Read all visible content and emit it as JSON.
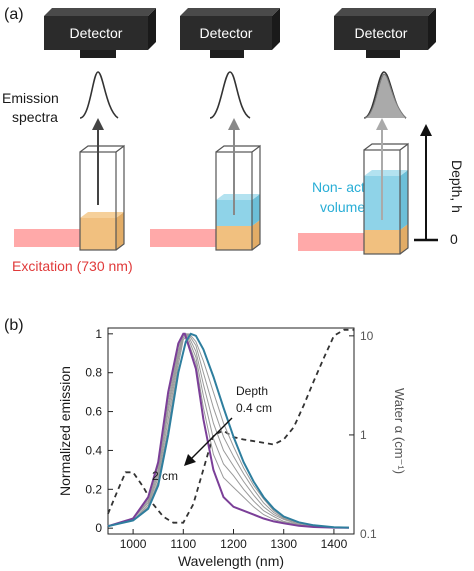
{
  "panel_a": {
    "label": "(a)",
    "detector_label": "Detector",
    "emission_label_line1": "Emission",
    "emission_label_line2": "spectra",
    "non_active_line1": "Non- active",
    "non_active_line2": "volume",
    "excitation_label": "Excitation (730 nm)",
    "depth_label": "Depth, h",
    "zero_label": "0",
    "colors": {
      "detector": "#2b2b2b",
      "liquid": "#f1c07f",
      "non_active": "#8fd3e8",
      "excitation": "#ff8c8c",
      "non_active_text": "#29aed6",
      "excitation_text": "#e03a3a"
    }
  },
  "panel_b": {
    "label": "(b)",
    "annotation_depth": "Depth",
    "annotation_top": "0.4 cm",
    "annotation_bottom": "2 cm",
    "colors": {
      "top_curve": "#2e7e9e",
      "bottom_curve": "#7b3f98",
      "middle_curves": "#9a9a9a",
      "water": "#333333"
    }
  },
  "chart_data": {
    "type": "line",
    "title": "",
    "xlabel": "Wavelength (nm)",
    "ylabel": "Normalized emission",
    "y2label": "Water α (cm⁻¹)",
    "xlim": [
      950,
      1440
    ],
    "ylim": [
      -0.03,
      1.03
    ],
    "y2lim": [
      0.1,
      12
    ],
    "y2scale": "log",
    "xticks": [
      1000,
      1100,
      1200,
      1300,
      1400
    ],
    "yticks": [
      0,
      0.2,
      0.4,
      0.6,
      0.8,
      1
    ],
    "y2ticks": [
      0.1,
      1,
      10
    ],
    "y2ticklabels": [
      "0.1",
      "1",
      "10"
    ],
    "grid": false,
    "series": [
      {
        "role": "depth-0.4",
        "x": [
          950,
          1000,
          1030,
          1050,
          1070,
          1090,
          1105,
          1115,
          1125,
          1140,
          1160,
          1180,
          1200,
          1220,
          1240,
          1260,
          1280,
          1300,
          1330,
          1360,
          1400,
          1430
        ],
        "y": [
          0.01,
          0.04,
          0.1,
          0.22,
          0.48,
          0.8,
          0.96,
          1.0,
          0.99,
          0.92,
          0.78,
          0.62,
          0.47,
          0.34,
          0.24,
          0.16,
          0.1,
          0.06,
          0.03,
          0.015,
          0.005,
          0.003
        ]
      },
      {
        "role": "middle-1",
        "x": [
          950,
          1000,
          1030,
          1050,
          1070,
          1090,
          1100,
          1112,
          1125,
          1140,
          1160,
          1180,
          1200,
          1220,
          1240,
          1260,
          1280,
          1300,
          1330,
          1360,
          1400,
          1430
        ],
        "y": [
          0.01,
          0.04,
          0.11,
          0.24,
          0.52,
          0.84,
          0.97,
          1.0,
          0.96,
          0.86,
          0.7,
          0.54,
          0.42,
          0.31,
          0.22,
          0.15,
          0.09,
          0.055,
          0.03,
          0.015,
          0.005,
          0.003
        ]
      },
      {
        "role": "middle-2",
        "x": [
          950,
          1000,
          1030,
          1050,
          1070,
          1090,
          1100,
          1110,
          1125,
          1140,
          1160,
          1180,
          1200,
          1220,
          1240,
          1260,
          1280,
          1300,
          1330,
          1360,
          1400,
          1430
        ],
        "y": [
          0.01,
          0.04,
          0.12,
          0.26,
          0.56,
          0.87,
          0.98,
          1.0,
          0.94,
          0.8,
          0.62,
          0.47,
          0.37,
          0.28,
          0.2,
          0.13,
          0.08,
          0.05,
          0.025,
          0.012,
          0.005,
          0.003
        ]
      },
      {
        "role": "middle-3",
        "x": [
          950,
          1000,
          1030,
          1050,
          1070,
          1090,
          1100,
          1108,
          1125,
          1140,
          1160,
          1180,
          1200,
          1220,
          1240,
          1260,
          1280,
          1300,
          1330,
          1360,
          1400,
          1430
        ],
        "y": [
          0.01,
          0.05,
          0.13,
          0.28,
          0.6,
          0.89,
          0.99,
          1.0,
          0.91,
          0.74,
          0.54,
          0.4,
          0.32,
          0.24,
          0.17,
          0.11,
          0.07,
          0.045,
          0.02,
          0.01,
          0.004,
          0.002
        ]
      },
      {
        "role": "middle-4",
        "x": [
          950,
          1000,
          1030,
          1050,
          1070,
          1090,
          1100,
          1106,
          1125,
          1140,
          1160,
          1180,
          1200,
          1220,
          1240,
          1260,
          1280,
          1300,
          1330,
          1360,
          1400,
          1430
        ],
        "y": [
          0.01,
          0.05,
          0.14,
          0.3,
          0.63,
          0.91,
          0.99,
          1.0,
          0.88,
          0.68,
          0.46,
          0.33,
          0.27,
          0.2,
          0.14,
          0.09,
          0.06,
          0.035,
          0.018,
          0.009,
          0.004,
          0.002
        ]
      },
      {
        "role": "middle-5",
        "x": [
          950,
          1000,
          1030,
          1050,
          1070,
          1090,
          1100,
          1104,
          1125,
          1140,
          1160,
          1180,
          1200,
          1220,
          1240,
          1260,
          1280,
          1300,
          1330,
          1360,
          1400,
          1430
        ],
        "y": [
          0.01,
          0.05,
          0.15,
          0.32,
          0.66,
          0.93,
          0.99,
          1.0,
          0.85,
          0.62,
          0.38,
          0.26,
          0.21,
          0.16,
          0.11,
          0.07,
          0.045,
          0.03,
          0.015,
          0.008,
          0.003,
          0.002
        ]
      },
      {
        "role": "depth-2",
        "x": [
          950,
          1000,
          1030,
          1050,
          1070,
          1090,
          1100,
          1103,
          1125,
          1140,
          1160,
          1180,
          1200,
          1220,
          1240,
          1260,
          1280,
          1300,
          1330,
          1360,
          1400,
          1430
        ],
        "y": [
          0.01,
          0.05,
          0.16,
          0.34,
          0.7,
          0.95,
          1.0,
          1.0,
          0.82,
          0.56,
          0.3,
          0.16,
          0.11,
          0.09,
          0.07,
          0.05,
          0.035,
          0.025,
          0.012,
          0.006,
          0.003,
          0.002
        ]
      }
    ],
    "water_absorption": {
      "x": [
        950,
        970,
        985,
        1000,
        1020,
        1040,
        1060,
        1080,
        1100,
        1120,
        1140,
        1160,
        1180,
        1200,
        1220,
        1250,
        1280,
        1300,
        1320,
        1340,
        1360,
        1380,
        1400,
        1420,
        1440
      ],
      "y": [
        0.16,
        0.28,
        0.42,
        0.42,
        0.3,
        0.2,
        0.15,
        0.13,
        0.13,
        0.2,
        0.45,
        1.0,
        1.1,
        0.95,
        0.9,
        0.85,
        0.8,
        0.9,
        1.2,
        2.0,
        3.5,
        6.0,
        10.0,
        11.5,
        11.5
      ]
    }
  }
}
